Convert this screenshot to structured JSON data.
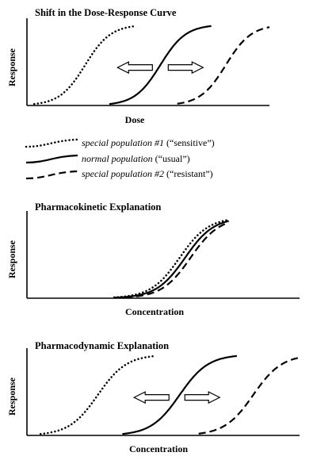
{
  "chart_data": [
    {
      "type": "line",
      "title": "Shift in the Dose-Response Curve",
      "xlabel": "Dose",
      "ylabel": "Response",
      "xlim": [
        0,
        10
      ],
      "ylim": [
        0,
        1
      ],
      "grid": false,
      "arrows": [
        "left",
        "right"
      ],
      "series": [
        {
          "key": "sensitive",
          "style": "dotted",
          "midpoint": 2.4,
          "x_range": [
            0.3,
            4.5
          ]
        },
        {
          "key": "normal",
          "style": "solid",
          "midpoint": 5.5,
          "x_range": [
            3.4,
            7.6
          ]
        },
        {
          "key": "resistant",
          "style": "dashed",
          "midpoint": 8.2,
          "x_range": [
            6.2,
            10.0
          ]
        }
      ]
    },
    {
      "type": "line",
      "title": "Pharmacokinetic Explanation",
      "xlabel": "Concentration",
      "ylabel": "Response",
      "xlim": [
        0,
        10
      ],
      "ylim": [
        0,
        1
      ],
      "grid": false,
      "arrows": [],
      "series": [
        {
          "key": "sensitive",
          "style": "dotted",
          "midpoint": 5.6,
          "x_range": [
            3.2,
            7.4
          ]
        },
        {
          "key": "normal",
          "style": "solid",
          "midpoint": 5.8,
          "x_range": [
            3.2,
            7.4
          ]
        },
        {
          "key": "resistant",
          "style": "dashed",
          "midpoint": 6.0,
          "x_range": [
            3.2,
            7.4
          ]
        }
      ]
    },
    {
      "type": "line",
      "title": "Pharmacodynamic Explanation",
      "xlabel": "Concentration",
      "ylabel": "Response",
      "xlim": [
        0,
        10
      ],
      "ylim": [
        0,
        1
      ],
      "grid": false,
      "arrows": [
        "left",
        "right"
      ],
      "series": [
        {
          "key": "sensitive",
          "style": "dotted",
          "midpoint": 2.6,
          "x_range": [
            0.5,
            4.7
          ]
        },
        {
          "key": "normal",
          "style": "solid",
          "midpoint": 5.6,
          "x_range": [
            3.5,
            7.7
          ]
        },
        {
          "key": "resistant",
          "style": "dashed",
          "midpoint": 8.3,
          "x_range": [
            6.3,
            10.0
          ]
        }
      ]
    }
  ],
  "legend": {
    "items": [
      {
        "key": "sensitive",
        "style": "dotted",
        "name": "special population #1",
        "note": " (“sensitive”)"
      },
      {
        "key": "normal",
        "style": "solid",
        "name": "normal population",
        "note": " (“usual”)"
      },
      {
        "key": "resistant",
        "style": "dashed",
        "name": "special population #2",
        "note": " (“resistant”)"
      }
    ]
  }
}
